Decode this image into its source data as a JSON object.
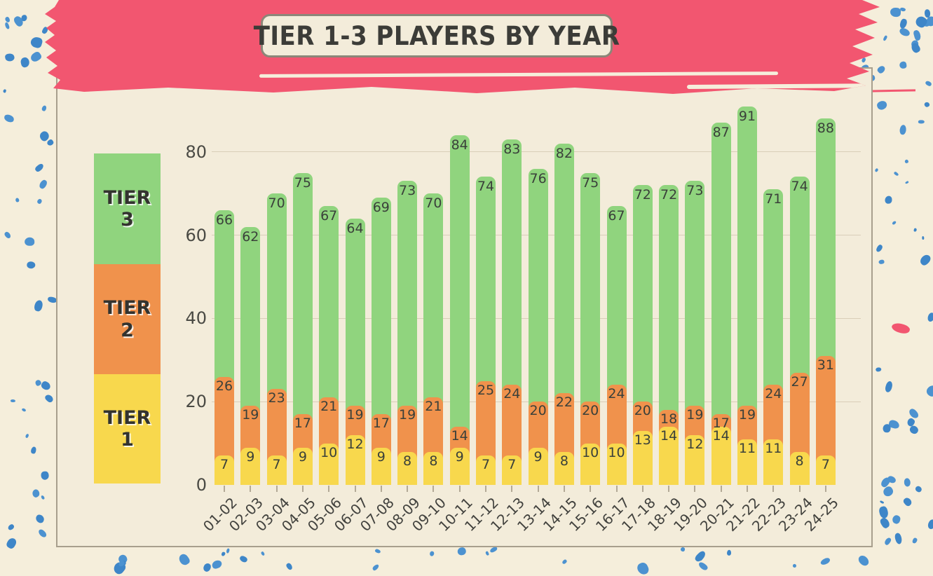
{
  "banner": {
    "title": "TIER 1-3 PLAYERS BY YEAR"
  },
  "legend": [
    {
      "line1": "TIER",
      "line2": "3",
      "color": "#90d47e"
    },
    {
      "line1": "TIER",
      "line2": "2",
      "color": "#f0924c"
    },
    {
      "line1": "TIER",
      "line2": "1",
      "color": "#f8d84d"
    }
  ],
  "colors": {
    "banner_red": "#f25670",
    "tier3_green": "#90d47e",
    "tier2_orange": "#f0924c",
    "tier1_yellow": "#f8d84d",
    "dot_blue": "#3e86c8",
    "background_cream": "#f5eedb",
    "panel_cream": "#f3ecda",
    "panel_border": "#a89f8d",
    "gridline": "#d9ceb8",
    "text_dark": "#3c3c38"
  },
  "chart_data": {
    "type": "bar",
    "stacked": true,
    "title": "TIER 1-3 PLAYERS BY YEAR",
    "xlabel": "",
    "ylabel": "",
    "yticks": [
      0,
      20,
      40,
      60,
      80
    ],
    "ylim": [
      0,
      95
    ],
    "grid": true,
    "legend_position": "left",
    "categories": [
      "01-02",
      "02-03",
      "03-04",
      "04-05",
      "05-06",
      "06-07",
      "07-08",
      "08-09",
      "09-10",
      "10-11",
      "11-12",
      "12-13",
      "13-14",
      "14-15",
      "15-16",
      "16-17",
      "17-18",
      "18-19",
      "19-20",
      "20-21",
      "21-22",
      "22-23",
      "23-24",
      "24-25"
    ],
    "series": [
      {
        "name": "Tier 1",
        "color": "#f8d84d",
        "values": [
          7,
          9,
          7,
          9,
          10,
          12,
          9,
          8,
          8,
          9,
          7,
          7,
          9,
          8,
          10,
          10,
          13,
          14,
          12,
          14,
          11,
          11,
          8,
          7
        ]
      },
      {
        "name": "Tier 2",
        "color": "#f0924c",
        "values": [
          19,
          10,
          16,
          8,
          11,
          7,
          8,
          11,
          13,
          5,
          18,
          17,
          11,
          14,
          10,
          14,
          7,
          4,
          7,
          3,
          8,
          13,
          19,
          24
        ]
      },
      {
        "name": "Tier 3",
        "color": "#90d47e",
        "values": [
          40,
          43,
          47,
          58,
          46,
          45,
          52,
          54,
          49,
          70,
          49,
          59,
          56,
          60,
          55,
          43,
          52,
          54,
          54,
          70,
          72,
          47,
          47,
          57
        ]
      }
    ],
    "labels": {
      "tier1": [
        7,
        9,
        7,
        9,
        10,
        12,
        9,
        8,
        8,
        9,
        7,
        7,
        9,
        8,
        10,
        10,
        13,
        14,
        12,
        14,
        11,
        11,
        8,
        7
      ],
      "tier1_plus_tier2": [
        26,
        19,
        23,
        17,
        21,
        19,
        17,
        19,
        21,
        14,
        25,
        24,
        20,
        22,
        20,
        24,
        20,
        18,
        19,
        17,
        19,
        24,
        27,
        31
      ],
      "total": [
        66,
        62,
        70,
        75,
        67,
        64,
        69,
        73,
        70,
        84,
        74,
        83,
        76,
        82,
        75,
        67,
        72,
        72,
        73,
        87,
        91,
        71,
        74,
        88
      ]
    }
  }
}
